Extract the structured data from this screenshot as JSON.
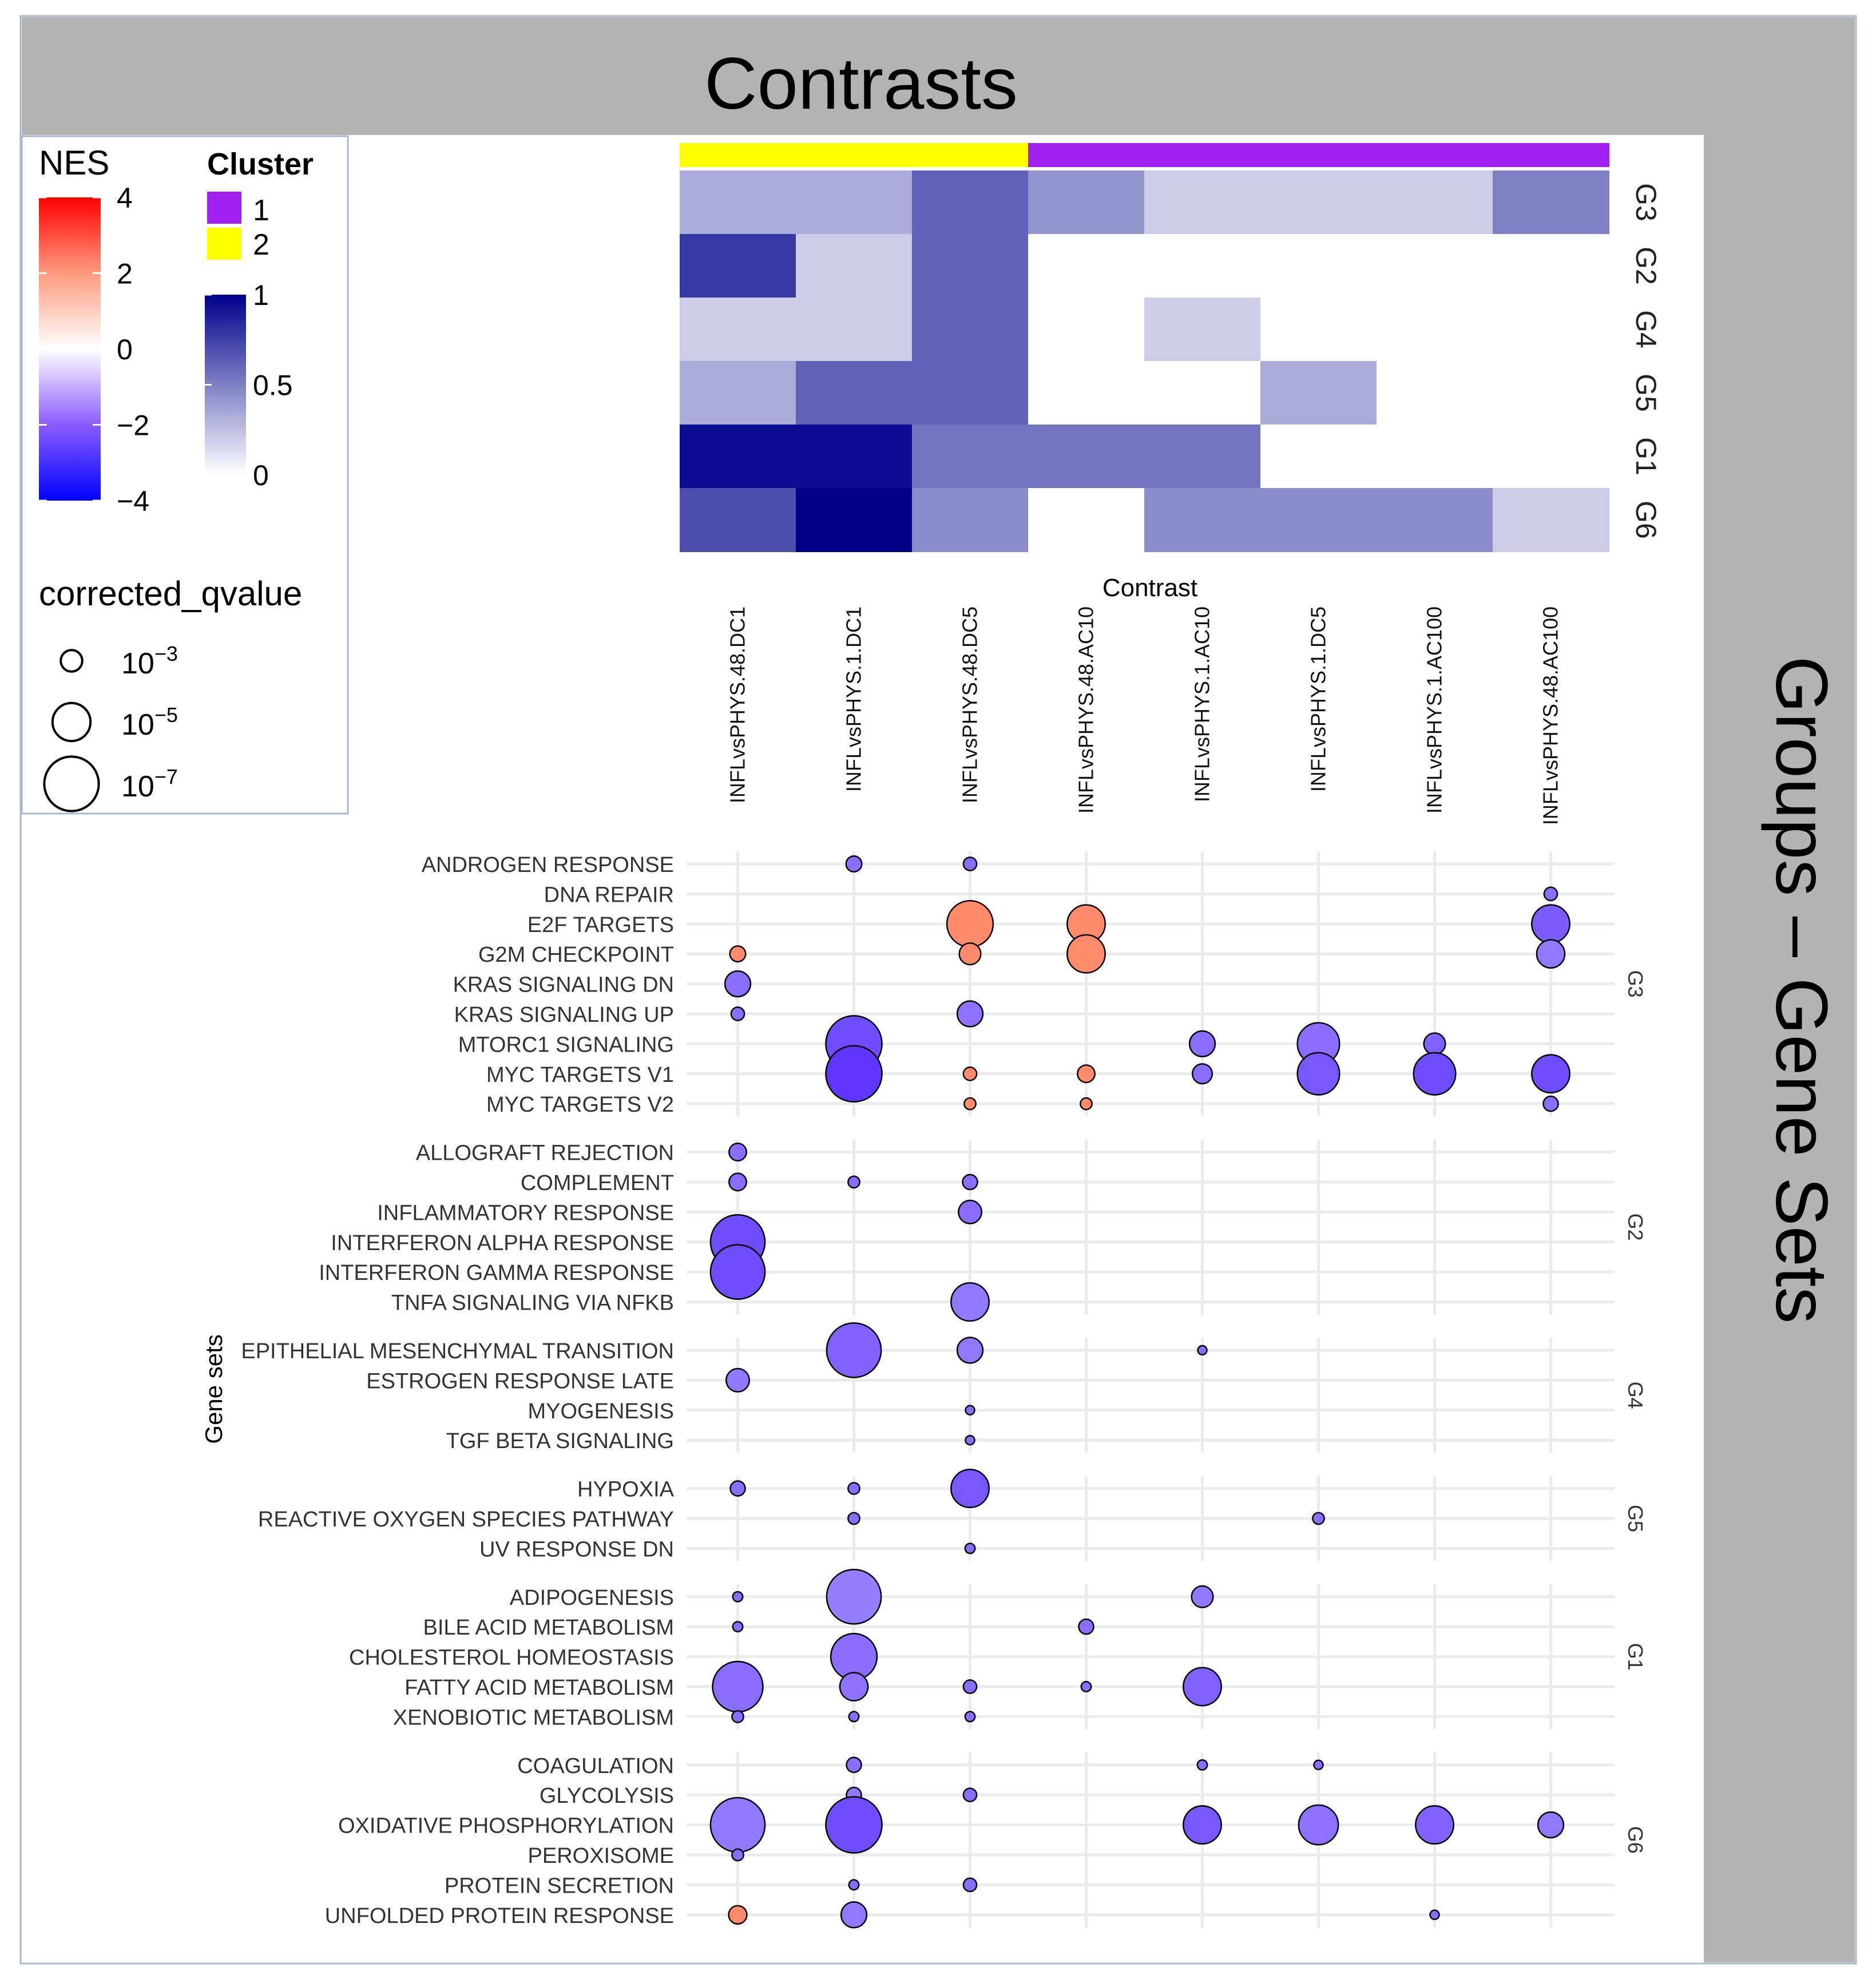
{
  "header": {
    "title": "Contrasts",
    "side_title": "Groups – Gene Sets"
  },
  "colors": {
    "header_bg": "#b3b3b3",
    "cluster_1": "#a020f0",
    "cluster_2": "#ffff00",
    "nes_low": "#0000ff",
    "nes_mid": "#ffffff",
    "nes_high": "#ff0000",
    "heat_high": "#00008b",
    "heat_low": "#ffffff",
    "grid": "#ebebeb"
  },
  "legend": {
    "nes": {
      "title": "NES",
      "ticks": [
        "4",
        "2",
        "0",
        "−2",
        "−4"
      ],
      "values": [
        4,
        2,
        0,
        -2,
        -4
      ]
    },
    "cluster": {
      "title": "Cluster",
      "labels": [
        "1",
        "2"
      ]
    },
    "heat": {
      "ticks": [
        "1",
        "0.5",
        "0"
      ],
      "values": [
        1,
        0.5,
        0
      ]
    },
    "qvalue": {
      "title": "corrected_qvalue",
      "base": "10",
      "exponents": [
        "−3",
        "−5",
        "−7"
      ],
      "values": [
        3,
        5,
        7
      ]
    }
  },
  "chart_data": [
    {
      "type": "heatmap",
      "title": "Contrasts",
      "xlabel": "Contrast",
      "columns": [
        "INFLvsPHYS.48.DC1",
        "INFLvsPHYS.1.DC1",
        "INFLvsPHYS.48.DC5",
        "INFLvsPHYS.48.AC10",
        "INFLvsPHYS.1.AC10",
        "INFLvsPHYS.1.DC5",
        "INFLvsPHYS.1.AC100",
        "INFLvsPHYS.48.AC100"
      ],
      "column_cluster": [
        2,
        2,
        2,
        1,
        1,
        1,
        1,
        1
      ],
      "rows": [
        "G3",
        "G2",
        "G4",
        "G5",
        "G1",
        "G6"
      ],
      "values": [
        [
          0.33,
          0.33,
          0.62,
          0.42,
          0.2,
          0.2,
          0.2,
          0.5
        ],
        [
          0.78,
          0.2,
          0.62,
          0,
          0,
          0,
          0,
          0
        ],
        [
          0.2,
          0.2,
          0.62,
          0,
          0.2,
          0,
          0,
          0
        ],
        [
          0.33,
          0.62,
          0.62,
          0,
          0,
          0.33,
          0,
          0
        ],
        [
          0.95,
          0.95,
          0.55,
          0.55,
          0.55,
          0,
          0,
          0
        ],
        [
          0.7,
          1.0,
          0.45,
          0,
          0.45,
          0.45,
          0.45,
          0.2
        ]
      ],
      "range": [
        0,
        1
      ]
    },
    {
      "type": "scatter",
      "subtype": "dotplot",
      "ylabel": "Gene sets",
      "x": [
        "INFLvsPHYS.48.DC1",
        "INFLvsPHYS.1.DC1",
        "INFLvsPHYS.48.DC5",
        "INFLvsPHYS.48.AC10",
        "INFLvsPHYS.1.AC10",
        "INFLvsPHYS.1.DC5",
        "INFLvsPHYS.1.AC100",
        "INFLvsPHYS.48.AC100"
      ],
      "groups": [
        {
          "name": "G3",
          "gene_sets": [
            "ANDROGEN RESPONSE",
            "DNA REPAIR",
            "E2F TARGETS",
            "G2M CHECKPOINT",
            "KRAS SIGNALING DN",
            "KRAS SIGNALING UP",
            "MTORC1 SIGNALING",
            "MYC TARGETS V1",
            "MYC TARGETS V2"
          ]
        },
        {
          "name": "G2",
          "gene_sets": [
            "ALLOGRAFT REJECTION",
            "COMPLEMENT",
            "INFLAMMATORY RESPONSE",
            "INTERFERON ALPHA RESPONSE",
            "INTERFERON GAMMA RESPONSE",
            "TNFA SIGNALING VIA NFKB"
          ]
        },
        {
          "name": "G4",
          "gene_sets": [
            "EPITHELIAL MESENCHYMAL TRANSITION",
            "ESTROGEN RESPONSE LATE",
            "MYOGENESIS",
            "TGF BETA SIGNALING"
          ]
        },
        {
          "name": "G5",
          "gene_sets": [
            "HYPOXIA",
            "REACTIVE OXYGEN SPECIES PATHWAY",
            "UV RESPONSE DN"
          ]
        },
        {
          "name": "G1",
          "gene_sets": [
            "ADIPOGENESIS",
            "BILE ACID METABOLISM",
            "CHOLESTEROL HOMEOSTASIS",
            "FATTY ACID METABOLISM",
            "XENOBIOTIC METABOLISM"
          ]
        },
        {
          "name": "G6",
          "gene_sets": [
            "COAGULATION",
            "GLYCOLYSIS",
            "OXIDATIVE PHOSPHORYLATION",
            "PEROXISOME",
            "PROTEIN SECRETION",
            "UNFOLDED PROTEIN RESPONSE"
          ]
        }
      ],
      "points_note": "each point: [gene_set, contrast, NES, -log10(corrected_qvalue)]",
      "points": [
        [
          "ANDROGEN RESPONSE",
          "INFLvsPHYS.1.DC1",
          -2.0,
          2.3
        ],
        [
          "ANDROGEN RESPONSE",
          "INFLvsPHYS.48.DC5",
          -2.0,
          2.0
        ],
        [
          "DNA REPAIR",
          "INFLvsPHYS.48.AC100",
          -2.0,
          2.0
        ],
        [
          "E2F TARGETS",
          "INFLvsPHYS.48.DC5",
          2.0,
          6.0
        ],
        [
          "E2F TARGETS",
          "INFLvsPHYS.48.AC10",
          2.0,
          5.0
        ],
        [
          "E2F TARGETS",
          "INFLvsPHYS.48.AC100",
          -2.3,
          5.0
        ],
        [
          "G2M CHECKPOINT",
          "INFLvsPHYS.48.DC1",
          2.0,
          2.3
        ],
        [
          "G2M CHECKPOINT",
          "INFLvsPHYS.48.DC5",
          2.0,
          3.0
        ],
        [
          "G2M CHECKPOINT",
          "INFLvsPHYS.48.AC10",
          2.0,
          5.0
        ],
        [
          "G2M CHECKPOINT",
          "INFLvsPHYS.48.AC100",
          -1.8,
          3.8
        ],
        [
          "KRAS SIGNALING DN",
          "INFLvsPHYS.48.DC1",
          -2.0,
          3.5
        ],
        [
          "KRAS SIGNALING UP",
          "INFLvsPHYS.48.DC1",
          -2.0,
          2.0
        ],
        [
          "KRAS SIGNALING UP",
          "INFLvsPHYS.48.DC5",
          -1.9,
          3.5
        ],
        [
          "MTORC1 SIGNALING",
          "INFLvsPHYS.1.DC1",
          -2.6,
          7.2
        ],
        [
          "MTORC1 SIGNALING",
          "INFLvsPHYS.1.AC10",
          -2.0,
          3.5
        ],
        [
          "MTORC1 SIGNALING",
          "INFLvsPHYS.1.DC5",
          -2.0,
          5.5
        ],
        [
          "MTORC1 SIGNALING",
          "INFLvsPHYS.1.AC100",
          -2.2,
          3.0
        ],
        [
          "MYC TARGETS V1",
          "INFLvsPHYS.1.DC1",
          -3.0,
          7.2
        ],
        [
          "MYC TARGETS V1",
          "INFLvsPHYS.48.DC5",
          2.0,
          2.0
        ],
        [
          "MYC TARGETS V1",
          "INFLvsPHYS.48.AC10",
          2.0,
          2.5
        ],
        [
          "MYC TARGETS V1",
          "INFLvsPHYS.1.AC10",
          -2.0,
          2.8
        ],
        [
          "MYC TARGETS V1",
          "INFLvsPHYS.1.DC5",
          -2.4,
          5.5
        ],
        [
          "MYC TARGETS V1",
          "INFLvsPHYS.1.AC100",
          -2.6,
          5.5
        ],
        [
          "MYC TARGETS V1",
          "INFLvsPHYS.48.AC100",
          -2.6,
          5.0
        ],
        [
          "MYC TARGETS V2",
          "INFLvsPHYS.48.DC5",
          2.0,
          1.8
        ],
        [
          "MYC TARGETS V2",
          "INFLvsPHYS.48.AC10",
          2.0,
          1.8
        ],
        [
          "MYC TARGETS V2",
          "INFLvsPHYS.48.AC100",
          -2.0,
          2.2
        ],
        [
          "ALLOGRAFT REJECTION",
          "INFLvsPHYS.48.DC1",
          -2.0,
          2.5
        ],
        [
          "COMPLEMENT",
          "INFLvsPHYS.48.DC1",
          -2.0,
          2.5
        ],
        [
          "COMPLEMENT",
          "INFLvsPHYS.1.DC1",
          -2.0,
          1.8
        ],
        [
          "COMPLEMENT",
          "INFLvsPHYS.48.DC5",
          -2.0,
          2.2
        ],
        [
          "INFLAMMATORY RESPONSE",
          "INFLvsPHYS.48.DC5",
          -2.0,
          3.2
        ],
        [
          "INTERFERON ALPHA RESPONSE",
          "INFLvsPHYS.48.DC1",
          -2.6,
          7.0
        ],
        [
          "INTERFERON GAMMA RESPONSE",
          "INFLvsPHYS.48.DC1",
          -2.6,
          7.0
        ],
        [
          "TNFA SIGNALING VIA NFKB",
          "INFLvsPHYS.48.DC5",
          -1.8,
          5.0
        ],
        [
          "EPITHELIAL MESENCHYMAL TRANSITION",
          "INFLvsPHYS.1.DC1",
          -2.2,
          7.0
        ],
        [
          "EPITHELIAL MESENCHYMAL TRANSITION",
          "INFLvsPHYS.48.DC5",
          -1.8,
          3.5
        ],
        [
          "EPITHELIAL MESENCHYMAL TRANSITION",
          "INFLvsPHYS.1.AC10",
          -2.0,
          1.5
        ],
        [
          "ESTROGEN RESPONSE LATE",
          "INFLvsPHYS.48.DC1",
          -1.8,
          3.2
        ],
        [
          "MYOGENESIS",
          "INFLvsPHYS.48.DC5",
          -2.0,
          1.5
        ],
        [
          "TGF BETA SIGNALING",
          "INFLvsPHYS.48.DC5",
          -2.0,
          1.5
        ],
        [
          "HYPOXIA",
          "INFLvsPHYS.48.DC1",
          -2.0,
          2.2
        ],
        [
          "HYPOXIA",
          "INFLvsPHYS.1.DC1",
          -2.0,
          1.8
        ],
        [
          "HYPOXIA",
          "INFLvsPHYS.48.DC5",
          -2.4,
          5.0
        ],
        [
          "REACTIVE OXYGEN SPECIES PATHWAY",
          "INFLvsPHYS.1.DC1",
          -2.0,
          1.8
        ],
        [
          "REACTIVE OXYGEN SPECIES PATHWAY",
          "INFLvsPHYS.1.DC5",
          -2.0,
          1.8
        ],
        [
          "UV RESPONSE DN",
          "INFLvsPHYS.48.DC5",
          -2.0,
          1.6
        ],
        [
          "ADIPOGENESIS",
          "INFLvsPHYS.48.DC1",
          -2.0,
          1.6
        ],
        [
          "ADIPOGENESIS",
          "INFLvsPHYS.1.DC1",
          -1.7,
          7.0
        ],
        [
          "ADIPOGENESIS",
          "INFLvsPHYS.1.AC10",
          -1.8,
          3.0
        ],
        [
          "BILE ACID METABOLISM",
          "INFLvsPHYS.48.DC1",
          -2.0,
          1.6
        ],
        [
          "BILE ACID METABOLISM",
          "INFLvsPHYS.48.AC10",
          -2.0,
          2.2
        ],
        [
          "CHOLESTEROL HOMEOSTASIS",
          "INFLvsPHYS.1.DC1",
          -2.0,
          6.0
        ],
        [
          "FATTY ACID METABOLISM",
          "INFLvsPHYS.48.DC1",
          -2.0,
          6.5
        ],
        [
          "FATTY ACID METABOLISM",
          "INFLvsPHYS.1.DC1",
          -1.9,
          3.8
        ],
        [
          "FATTY ACID METABOLISM",
          "INFLvsPHYS.48.DC5",
          -2.0,
          2.0
        ],
        [
          "FATTY ACID METABOLISM",
          "INFLvsPHYS.48.AC10",
          -2.0,
          1.6
        ],
        [
          "FATTY ACID METABOLISM",
          "INFLvsPHYS.1.AC10",
          -2.2,
          5.0
        ],
        [
          "XENOBIOTIC METABOLISM",
          "INFLvsPHYS.48.DC1",
          -2.0,
          1.8
        ],
        [
          "XENOBIOTIC METABOLISM",
          "INFLvsPHYS.1.DC1",
          -2.0,
          1.6
        ],
        [
          "XENOBIOTIC METABOLISM",
          "INFLvsPHYS.48.DC5",
          -2.0,
          1.6
        ],
        [
          "COAGULATION",
          "INFLvsPHYS.1.DC1",
          -2.0,
          2.2
        ],
        [
          "COAGULATION",
          "INFLvsPHYS.1.AC10",
          -2.0,
          1.6
        ],
        [
          "COAGULATION",
          "INFLvsPHYS.1.DC5",
          -2.0,
          1.5
        ],
        [
          "GLYCOLYSIS",
          "INFLvsPHYS.1.DC1",
          -1.8,
          2.2
        ],
        [
          "GLYCOLYSIS",
          "INFLvsPHYS.48.DC5",
          -2.0,
          2.0
        ],
        [
          "OXIDATIVE PHOSPHORYLATION",
          "INFLvsPHYS.48.DC1",
          -1.8,
          7.0
        ],
        [
          "OXIDATIVE PHOSPHORYLATION",
          "INFLvsPHYS.1.DC1",
          -2.6,
          7.2
        ],
        [
          "OXIDATIVE PHOSPHORYLATION",
          "INFLvsPHYS.1.AC10",
          -2.4,
          5.0
        ],
        [
          "OXIDATIVE PHOSPHORYLATION",
          "INFLvsPHYS.1.DC5",
          -1.9,
          5.2
        ],
        [
          "OXIDATIVE PHOSPHORYLATION",
          "INFLvsPHYS.1.AC100",
          -2.2,
          5.0
        ],
        [
          "OXIDATIVE PHOSPHORYLATION",
          "INFLvsPHYS.48.AC100",
          -1.8,
          3.5
        ],
        [
          "PEROXISOME",
          "INFLvsPHYS.48.DC1",
          -2.0,
          1.8
        ],
        [
          "PROTEIN SECRETION",
          "INFLvsPHYS.1.DC1",
          -2.0,
          1.6
        ],
        [
          "PROTEIN SECRETION",
          "INFLvsPHYS.48.DC5",
          -2.0,
          2.0
        ],
        [
          "UNFOLDED PROTEIN RESPONSE",
          "INFLvsPHYS.48.DC1",
          2.0,
          2.6
        ],
        [
          "UNFOLDED PROTEIN RESPONSE",
          "INFLvsPHYS.1.DC1",
          -1.8,
          3.5
        ],
        [
          "UNFOLDED PROTEIN RESPONSE",
          "INFLvsPHYS.1.AC100",
          -2.0,
          1.5
        ]
      ],
      "color_scale": {
        "variable": "NES",
        "range": [
          -4,
          4
        ]
      },
      "size_scale": {
        "variable": "corrected_qvalue",
        "breaks": [
          3,
          5,
          7
        ]
      }
    }
  ]
}
